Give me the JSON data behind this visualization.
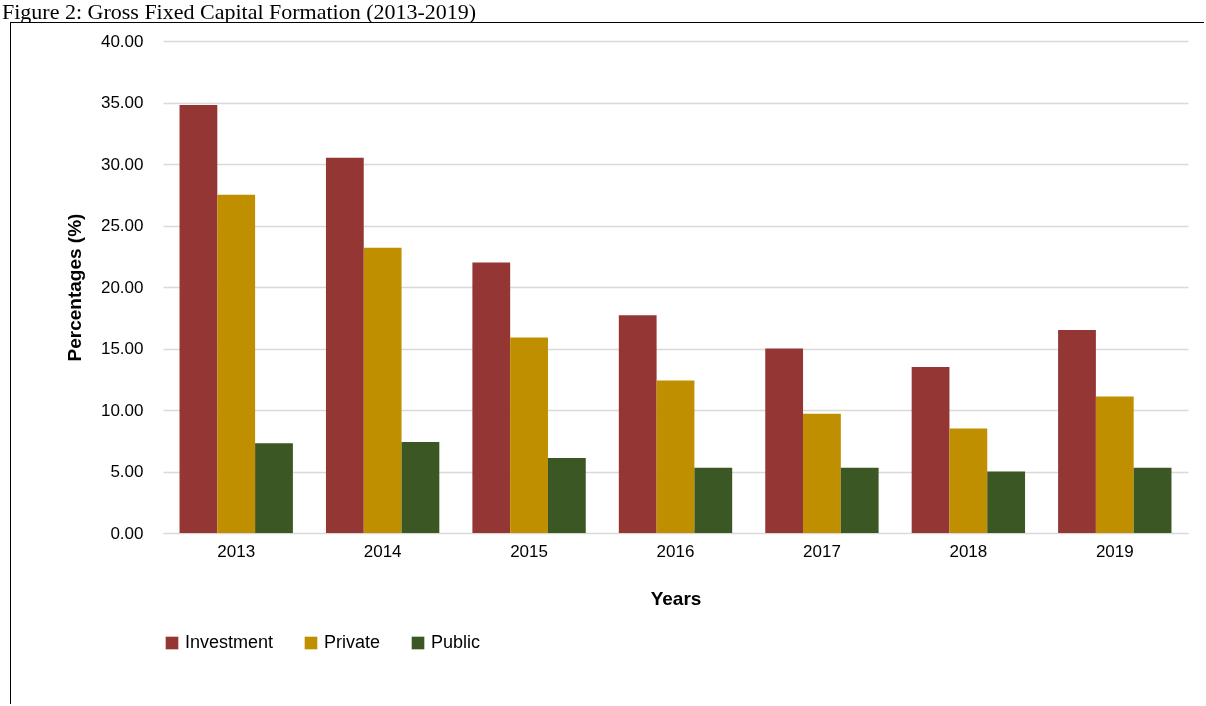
{
  "chart_data": {
    "type": "bar",
    "title": "Figure 2: Gross Fixed Capital Formation (2013-2019)",
    "xlabel": "Years",
    "ylabel": "Percentages (%)",
    "categories": [
      "2013",
      "2014",
      "2015",
      "2016",
      "2017",
      "2018",
      "2019"
    ],
    "series": [
      {
        "name": "Investment",
        "color": "#943634",
        "values": [
          34.8,
          30.5,
          22.0,
          17.7,
          15.0,
          13.5,
          16.5
        ]
      },
      {
        "name": "Private",
        "color": "#bf8f00",
        "values": [
          27.5,
          23.2,
          15.9,
          12.4,
          9.7,
          8.5,
          11.1
        ]
      },
      {
        "name": "Public",
        "color": "#3a5724",
        "values": [
          7.3,
          7.4,
          6.1,
          5.3,
          5.3,
          5.0,
          5.3
        ]
      }
    ],
    "ylim": [
      0,
      40
    ],
    "yticks": [
      {
        "value": 0,
        "label": "0.00"
      },
      {
        "value": 5,
        "label": "5.00"
      },
      {
        "value": 10,
        "label": "10.00"
      },
      {
        "value": 15,
        "label": "15.00"
      },
      {
        "value": 20,
        "label": "20.00"
      },
      {
        "value": 25,
        "label": "25.00"
      },
      {
        "value": 30,
        "label": "30.00"
      },
      {
        "value": 35,
        "label": "35.00"
      },
      {
        "value": 40,
        "label": "40.00"
      }
    ],
    "grid": "y",
    "legend": "bottom"
  }
}
